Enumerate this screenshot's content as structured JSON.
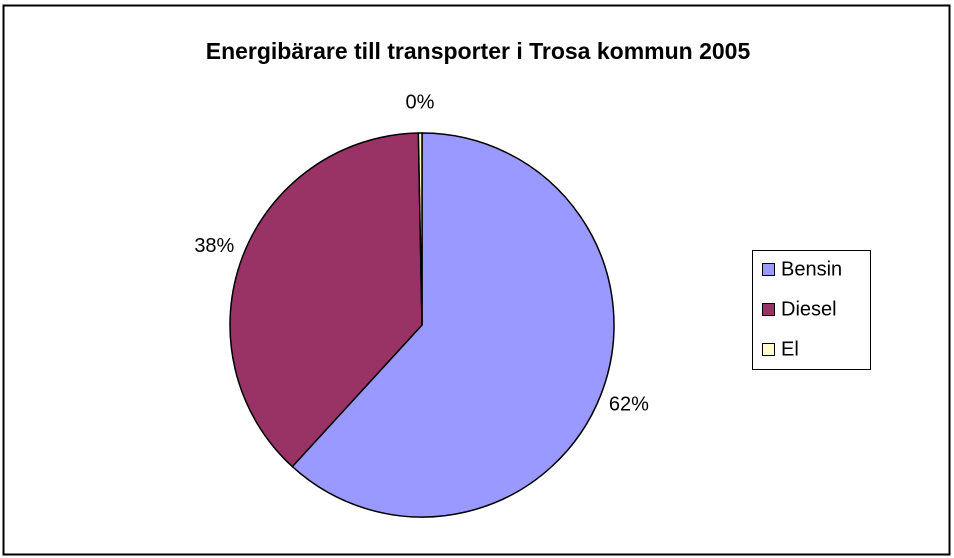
{
  "chart_data": {
    "type": "pie",
    "title": "Energibärare till transporter i Trosa kommun 2005",
    "categories": [
      "Bensin",
      "Diesel",
      "El"
    ],
    "values": [
      61.8,
      37.9,
      0.3
    ],
    "value_labels": [
      "62%",
      "38%",
      "0%"
    ],
    "colors": [
      "#9999ff",
      "#993366",
      "#ffffcc"
    ],
    "legend": "right"
  }
}
